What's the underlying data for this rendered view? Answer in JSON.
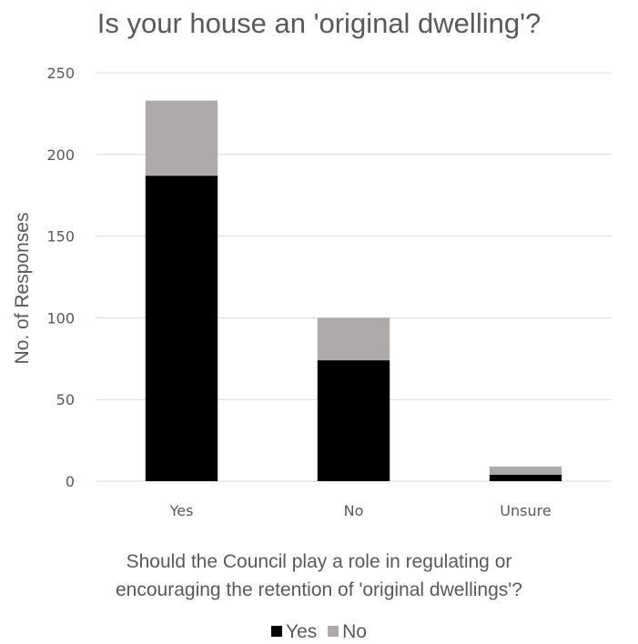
{
  "chart_data": {
    "type": "bar",
    "stacked": true,
    "title": "Is your house an 'original dwelling'?",
    "xlabel_lines": [
      "Should the Council play a role in regulating or",
      "encouraging the retention of 'original dwellings'?"
    ],
    "ylabel": "No. of Responses",
    "categories": [
      "Yes",
      "No",
      "Unsure"
    ],
    "series": [
      {
        "name": "Yes",
        "color": "#000000",
        "values": [
          187,
          74,
          4
        ]
      },
      {
        "name": "No",
        "color": "#aeaaaa",
        "values": [
          46,
          26,
          5
        ]
      }
    ],
    "ylim": [
      0,
      250
    ],
    "yticks": [
      0,
      50,
      100,
      150,
      200,
      250
    ],
    "grid": true,
    "legend_position": "bottom"
  }
}
